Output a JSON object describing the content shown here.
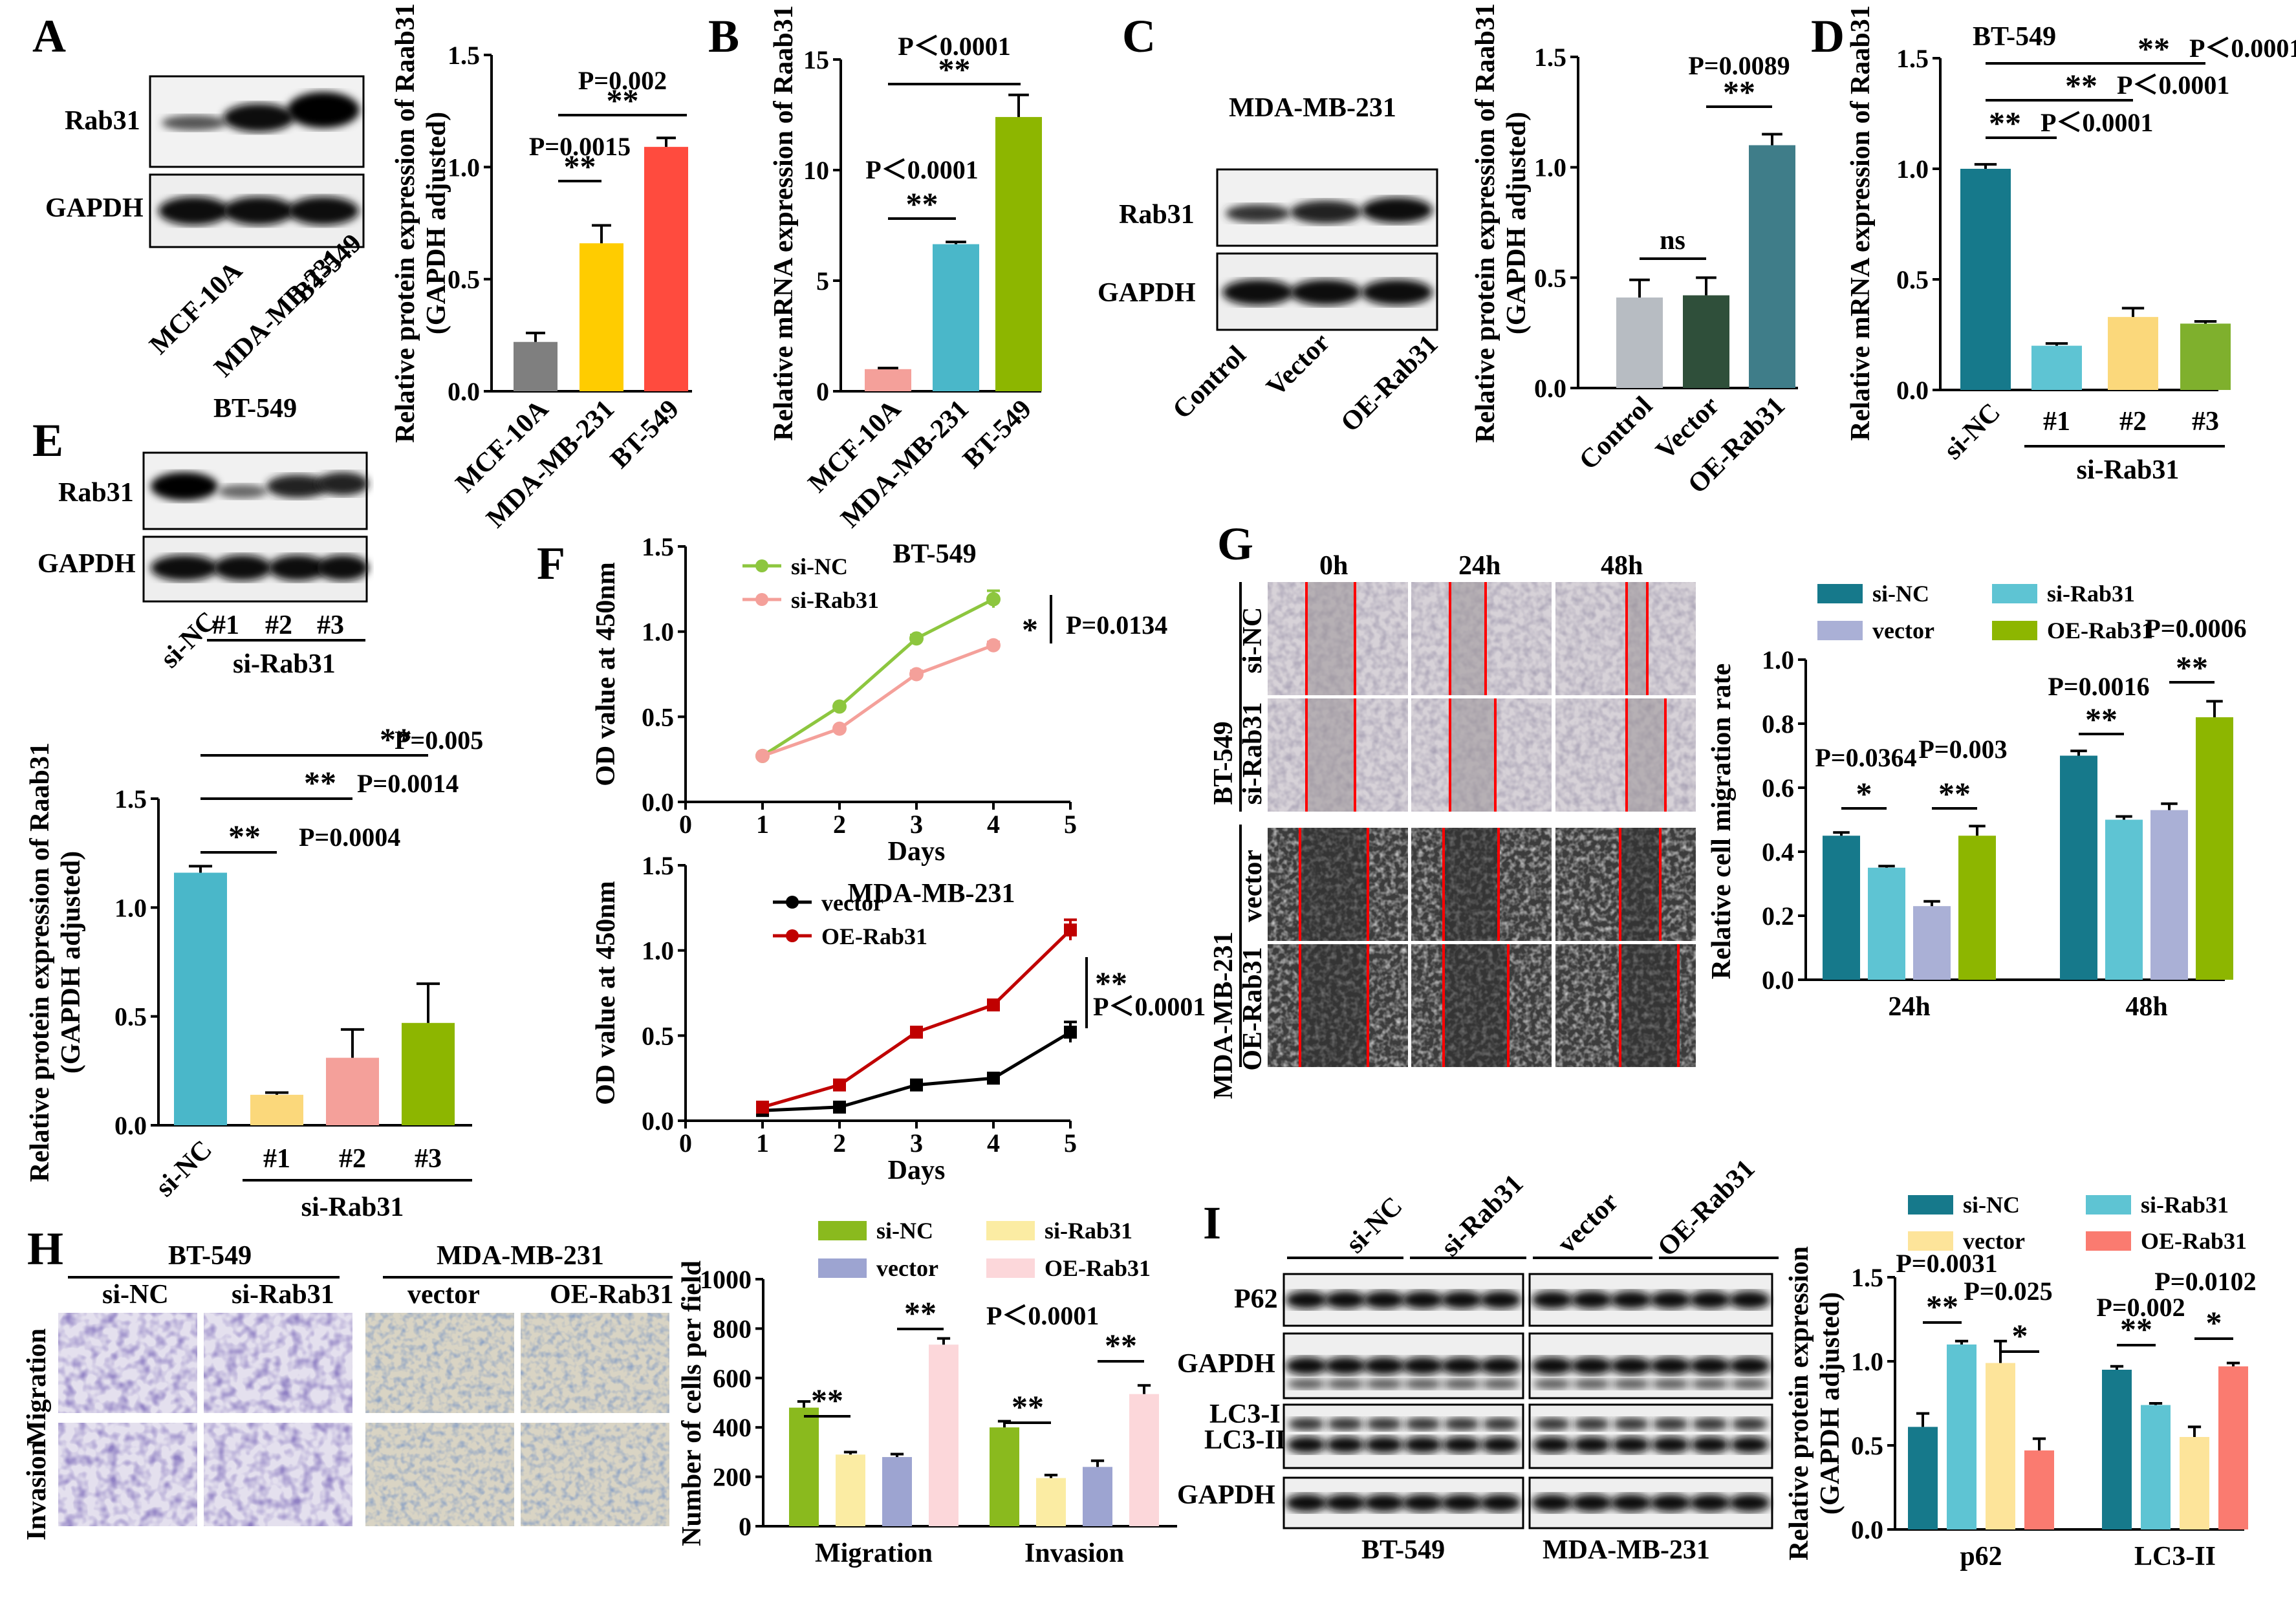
{
  "colors": {
    "grey": "#7f7f7f",
    "yellow": "#ffcc00",
    "red": "#ff4b3e",
    "pink": "#f4a09a",
    "teal": "#4ab7c9",
    "green": "#8db600",
    "light_grey": "#b7bcc2",
    "dark_green": "#2f4f3a",
    "slate": "#3f7d89",
    "dark_teal": "#16798b",
    "light_teal": "#5ec4d3",
    "light_yellow": "#fbd87b",
    "mid_green": "#7fb02d",
    "lavender": "#aab0d6",
    "sand": "#f5e28a",
    "olive": "#8aba1e",
    "light_yellow2": "#fbeca3",
    "blush": "#fcd7da",
    "periwinkle": "#9da4d1",
    "salmon": "#fa7b70",
    "cream": "#fde49a",
    "black": "#000000",
    "darkred": "#c00000",
    "line_green": "#8dc63f",
    "line_pink": "#f4a09a"
  },
  "panels": {
    "A": {
      "label": "A",
      "blot_rows": [
        "Rab31",
        "GAPDH"
      ],
      "lanes": [
        "MCF-10A",
        "MDA-MB-231",
        "BT-549"
      ],
      "chart_data": {
        "type": "bar",
        "categories": [
          "MCF-10A",
          "MDA-MB-231",
          "BT-549"
        ],
        "values": [
          0.22,
          0.66,
          1.09
        ],
        "errors": [
          0.04,
          0.08,
          0.04
        ],
        "colors": [
          "#7f7f7f",
          "#ffcc00",
          "#ff4b3e"
        ],
        "ylabel": "Relative protein expression of Raab31 (GAPDH adjusted)",
        "ylabel_lines": [
          "Relative protein expression of Raab31",
          "(GAPDH adjusted)"
        ],
        "ylim": [
          0,
          1.5
        ],
        "ticks": [
          "0.0",
          "0.5",
          "1.0",
          "1.5"
        ],
        "annotations": [
          {
            "text": "**",
            "p": "P=0.0015",
            "from": 0,
            "to": 1
          },
          {
            "text": "**",
            "p": "P=0.002",
            "from": 0,
            "to": 2
          }
        ]
      }
    },
    "B": {
      "label": "B",
      "chart_data": {
        "type": "bar",
        "categories": [
          "MCF-10A",
          "MDA-MB-231",
          "BT-549"
        ],
        "values": [
          1.0,
          6.65,
          12.4
        ],
        "errors": [
          0.05,
          0.1,
          1.0
        ],
        "colors": [
          "#f4a09a",
          "#4ab7c9",
          "#8db600"
        ],
        "ylabel": "Relative mRNA expression of Raab31",
        "ylim": [
          0,
          15
        ],
        "ticks": [
          "0",
          "5",
          "10",
          "15"
        ],
        "annotations": [
          {
            "text": "**",
            "p": "P＜0.0001",
            "from": 0,
            "to": 1
          },
          {
            "text": "**",
            "p": "P＜0.0001",
            "from": 0,
            "to": 2
          }
        ]
      }
    },
    "C": {
      "label": "C",
      "cell_line": "MDA-MB-231",
      "blot_rows": [
        "Rab31",
        "GAPDH"
      ],
      "lanes": [
        "Control",
        "Vector",
        "OE-Rab31"
      ],
      "chart_data": {
        "type": "bar",
        "categories": [
          "Control",
          "Vector",
          "OE-Rab31"
        ],
        "values": [
          0.41,
          0.42,
          1.1
        ],
        "errors": [
          0.08,
          0.08,
          0.05
        ],
        "colors": [
          "#b7bcc2",
          "#2f4f3a",
          "#3f7d89"
        ],
        "ylabel_lines": [
          "Relative protein expression of Raab31",
          "(GAPDH adjusted)"
        ],
        "ylim": [
          0,
          1.5
        ],
        "ticks": [
          "0.0",
          "0.5",
          "1.0",
          "1.5"
        ],
        "annotations": [
          {
            "text": "ns",
            "from": 0,
            "to": 1
          },
          {
            "text": "**",
            "p": "P=0.0089",
            "from": 1,
            "to": 2
          }
        ]
      }
    },
    "D": {
      "label": "D",
      "cell_line": "BT-549",
      "group": "si-Rab31",
      "chart_data": {
        "type": "bar",
        "categories": [
          "si-NC",
          "#1",
          "#2",
          "#3"
        ],
        "values": [
          1.0,
          0.2,
          0.33,
          0.3
        ],
        "errors": [
          0.02,
          0.01,
          0.04,
          0.01
        ],
        "colors": [
          "#16798b",
          "#5ec4d3",
          "#fbd87b",
          "#7fb02d"
        ],
        "ylabel": "Relative mRNA expression of Raab31",
        "ylim": [
          0,
          1.5
        ],
        "ticks": [
          "0.0",
          "0.5",
          "1.0",
          "1.5"
        ],
        "annotations": [
          {
            "text": "**",
            "p": "P＜0.0001",
            "from": 0,
            "to": 1
          },
          {
            "text": "**",
            "p": "P＜0.0001",
            "from": 0,
            "to": 2
          },
          {
            "text": "**",
            "p": "P＜0.0001",
            "from": 0,
            "to": 3
          }
        ]
      }
    },
    "E": {
      "label": "E",
      "cell_line": "BT-549",
      "blot_rows": [
        "Rab31",
        "GAPDH"
      ],
      "lanes": [
        "si-NC",
        "#1",
        "#2",
        "#3"
      ],
      "group": "si-Rab31",
      "chart_data": {
        "type": "bar",
        "categories": [
          "si-NC",
          "#1",
          "#2",
          "#3"
        ],
        "values": [
          1.16,
          0.14,
          0.31,
          0.47
        ],
        "errors": [
          0.03,
          0.01,
          0.13,
          0.18
        ],
        "colors": [
          "#4ab7c9",
          "#fbd87b",
          "#f4a09a",
          "#8db600"
        ],
        "ylabel_lines": [
          "Relative protein expression of Raab31",
          "(GAPDH adjusted)"
        ],
        "ylim": [
          0,
          1.5
        ],
        "ticks": [
          "0.0",
          "0.5",
          "1.0",
          "1.5"
        ],
        "annotations": [
          {
            "text": "**",
            "p": "P=0.0004",
            "from": 0,
            "to": 1
          },
          {
            "text": "**",
            "p": "P=0.0014",
            "from": 0,
            "to": 2
          },
          {
            "text": "**",
            "p": "P=0.005",
            "from": 0,
            "to": 3
          }
        ]
      }
    },
    "F": {
      "label": "F",
      "chart_data": [
        {
          "type": "line",
          "title": "BT-549",
          "x": [
            1,
            2,
            3,
            4
          ],
          "series": [
            {
              "name": "si-NC",
              "values": [
                0.27,
                0.56,
                0.96,
                1.19
              ],
              "errors": [
                0.01,
                0.01,
                0.02,
                0.05
              ],
              "color": "#8dc63f"
            },
            {
              "name": "si-Rab31",
              "values": [
                0.27,
                0.43,
                0.75,
                0.92
              ],
              "errors": [
                0.01,
                0.01,
                0.02,
                0.02
              ],
              "color": "#f4a09a"
            }
          ],
          "xlabel": "Days",
          "ylabel": "OD value at 450nm",
          "xlim": [
            0,
            5
          ],
          "ylim": [
            0,
            1.5
          ],
          "xticks": [
            "0",
            "1",
            "2",
            "3",
            "4",
            "5"
          ],
          "yticks": [
            "0.0",
            "0.5",
            "1.0",
            "1.5"
          ],
          "sig": "*",
          "p": "P=0.0134"
        },
        {
          "type": "line",
          "title": "MDA-MB-231",
          "x": [
            1,
            2,
            3,
            4,
            5
          ],
          "series": [
            {
              "name": "vector",
              "values": [
                0.06,
                0.08,
                0.21,
                0.25,
                0.52
              ],
              "errors": [
                0.01,
                0.01,
                0.01,
                0.01,
                0.06
              ],
              "color": "#000000"
            },
            {
              "name": "OE-Rab31",
              "values": [
                0.08,
                0.21,
                0.52,
                0.68,
                1.12
              ],
              "errors": [
                0.01,
                0.01,
                0.03,
                0.03,
                0.06
              ],
              "color": "#c00000"
            }
          ],
          "xlabel": "Days",
          "ylabel": "OD value at 450nm",
          "xlim": [
            0,
            5
          ],
          "ylim": [
            0,
            1.5
          ],
          "xticks": [
            "0",
            "1",
            "2",
            "3",
            "4",
            "5"
          ],
          "yticks": [
            "0.0",
            "0.5",
            "1.0",
            "1.5"
          ],
          "sig": "**",
          "p": "P＜0.0001"
        }
      ]
    },
    "G": {
      "label": "G",
      "times": [
        "0h",
        "24h",
        "48h"
      ],
      "rows": [
        {
          "cell": "BT-549",
          "cond": [
            "si-NC",
            "si-Rab31"
          ]
        },
        {
          "cell": "MDA-MB-231",
          "cond": [
            "vector",
            "OE-Rab31"
          ]
        }
      ],
      "chart_data": {
        "type": "bar",
        "categories": [
          "24h",
          "48h"
        ],
        "series": [
          {
            "name": "si-NC",
            "values": [
              0.45,
              0.7
            ],
            "errors": [
              0.01,
              0.015
            ],
            "color": "#16798b"
          },
          {
            "name": "si-Rab31",
            "values": [
              0.35,
              0.5
            ],
            "errors": [
              0.005,
              0.01
            ],
            "color": "#5ec4d3"
          },
          {
            "name": "vector",
            "values": [
              0.23,
              0.53
            ],
            "errors": [
              0.015,
              0.02
            ],
            "color": "#aab0d6"
          },
          {
            "name": "OE-Rab31",
            "values": [
              0.45,
              0.82
            ],
            "errors": [
              0.03,
              0.05
            ],
            "color": "#8db600"
          }
        ],
        "ylabel": "Relative cell migration rate",
        "ylim": [
          0,
          1.0
        ],
        "ticks": [
          "0.0",
          "0.2",
          "0.4",
          "0.6",
          "0.8",
          "1.0"
        ],
        "annotations": [
          {
            "text": "*",
            "p": "P=0.0364",
            "g": 0,
            "from": 0,
            "to": 1
          },
          {
            "text": "**",
            "p": "P=0.003",
            "g": 0,
            "from": 2,
            "to": 3
          },
          {
            "text": "**",
            "p": "P=0.0016",
            "g": 1,
            "from": 0,
            "to": 1
          },
          {
            "text": "**",
            "p": "P=0.0006",
            "g": 1,
            "from": 2,
            "to": 3
          }
        ]
      }
    },
    "H": {
      "label": "H",
      "cells": [
        "BT-549",
        "MDA-MB-231"
      ],
      "conds": [
        "si-NC",
        "si-Rab31",
        "vector",
        "OE-Rab31"
      ],
      "rows": [
        "Migration",
        "Invasion"
      ],
      "chart_data": {
        "type": "bar",
        "categories": [
          "Migration",
          "Invasion"
        ],
        "series": [
          {
            "name": "si-NC",
            "values": [
              480,
              400
            ],
            "errors": [
              25,
              25
            ],
            "color": "#8aba1e"
          },
          {
            "name": "si-Rab31",
            "values": [
              290,
              195
            ],
            "errors": [
              10,
              12
            ],
            "color": "#fbeca3"
          },
          {
            "name": "vector",
            "values": [
              280,
              240
            ],
            "errors": [
              12,
              25
            ],
            "color": "#9da4d1"
          },
          {
            "name": "OE-Rab31",
            "values": [
              735,
              535
            ],
            "errors": [
              25,
              35
            ],
            "color": "#fcd7da"
          }
        ],
        "ylabel": "Number of cells per field",
        "ylim": [
          0,
          1000
        ],
        "ticks": [
          "0",
          "200",
          "400",
          "600",
          "800",
          "1000"
        ],
        "p": "P＜0.0001",
        "annotations": [
          {
            "text": "**",
            "g": 0,
            "from": 0,
            "to": 1
          },
          {
            "text": "**",
            "g": 0,
            "from": 2,
            "to": 3
          },
          {
            "text": "**",
            "g": 1,
            "from": 0,
            "to": 1
          },
          {
            "text": "**",
            "g": 1,
            "from": 2,
            "to": 3
          }
        ]
      }
    },
    "I": {
      "label": "I",
      "conds": [
        "si-NC",
        "si-Rab31",
        "vector",
        "OE-Rab31"
      ],
      "blot_rows": [
        "P62",
        "GAPDH",
        "LC3-I",
        "LC3-II",
        "GAPDH"
      ],
      "cells": [
        "BT-549",
        "MDA-MB-231"
      ],
      "chart_data": {
        "type": "bar",
        "categories": [
          "p62",
          "LC3-II"
        ],
        "series": [
          {
            "name": "si-NC",
            "values": [
              0.61,
              0.95
            ],
            "errors": [
              0.08,
              0.02
            ],
            "color": "#16798b"
          },
          {
            "name": "si-Rab31",
            "values": [
              1.1,
              0.74
            ],
            "errors": [
              0.02,
              0.01
            ],
            "color": "#5ec4d3"
          },
          {
            "name": "vector",
            "values": [
              0.99,
              0.55
            ],
            "errors": [
              0.13,
              0.06
            ],
            "color": "#fde49a"
          },
          {
            "name": "OE-Rab31",
            "values": [
              0.47,
              0.97
            ],
            "errors": [
              0.07,
              0.02
            ],
            "color": "#fa7b70"
          }
        ],
        "ylabel_lines": [
          "Relative protein expression",
          "(GAPDH adjusted)"
        ],
        "ylim": [
          0,
          1.5
        ],
        "ticks": [
          "0.0",
          "0.5",
          "1.0",
          "1.5"
        ],
        "annotations": [
          {
            "text": "**",
            "p": "P=0.0031",
            "g": 0,
            "from": 0,
            "to": 1
          },
          {
            "text": "*",
            "p": "P=0.025",
            "g": 0,
            "from": 2,
            "to": 3
          },
          {
            "text": "**",
            "p": "P=0.002",
            "g": 1,
            "from": 0,
            "to": 1
          },
          {
            "text": "*",
            "p": "P=0.0102",
            "g": 1,
            "from": 2,
            "to": 3
          }
        ]
      }
    }
  }
}
